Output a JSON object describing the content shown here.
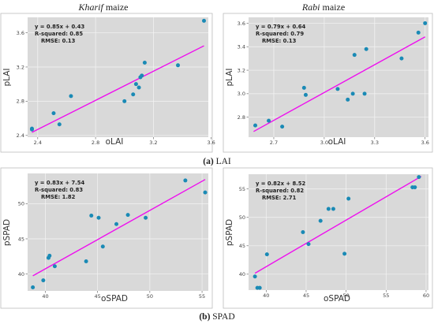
{
  "colors": {
    "panel_bg": "#d9d9d9",
    "frame": "#bcbcbc",
    "grid": "#f4f4f4",
    "point": "#1a8ab5",
    "line": "#ee0fee"
  },
  "captions": {
    "a_tag": "(a)",
    "a_text": " LAI",
    "b_tag": "(b)",
    "b_text": " SPAD"
  },
  "chart_data": [
    {
      "type": "scatter",
      "title_italic": "Kharif",
      "title_rest": " maize",
      "xlabel": "oLAI",
      "ylabel": "pLAI",
      "xlim": [
        2.33,
        3.58
      ],
      "ylim": [
        2.38,
        3.78
      ],
      "xticks": [
        2.4,
        2.8,
        3.2,
        3.6
      ],
      "yticks": [
        2.4,
        2.8,
        3.2,
        3.6
      ],
      "tick_decimals": 1,
      "stats": [
        "y = 0.85x + 0.43",
        "R-squared: 0.85",
        "RMSE: 0.13"
      ],
      "fit": {
        "slope": 0.85,
        "intercept": 0.43,
        "x": [
          2.36,
          3.55
        ]
      },
      "points": [
        [
          2.36,
          2.48
        ],
        [
          2.36,
          2.47
        ],
        [
          2.51,
          2.66
        ],
        [
          2.55,
          2.53
        ],
        [
          2.63,
          2.86
        ],
        [
          3.0,
          2.8
        ],
        [
          3.06,
          2.88
        ],
        [
          3.08,
          3.0
        ],
        [
          3.1,
          2.96
        ],
        [
          3.11,
          3.08
        ],
        [
          3.12,
          3.1
        ],
        [
          3.14,
          3.25
        ],
        [
          3.37,
          3.22
        ],
        [
          3.55,
          3.74
        ]
      ]
    },
    {
      "type": "scatter",
      "title_italic": "Rabi",
      "title_rest": " maize",
      "xlabel": "oLAI",
      "ylabel": "pLAI",
      "xlim": [
        2.55,
        3.62
      ],
      "ylim": [
        2.63,
        3.65
      ],
      "xticks": [
        2.7,
        3.0,
        3.3,
        3.6
      ],
      "yticks": [
        2.8,
        3.0,
        3.2,
        3.4,
        3.6
      ],
      "tick_decimals": 1,
      "stats": [
        "y = 0.79x + 0.64",
        "R-squared: 0.79",
        "RMSE: 0.13"
      ],
      "fit": {
        "slope": 0.79,
        "intercept": 0.64,
        "x": [
          2.58,
          3.6
        ]
      },
      "points": [
        [
          2.59,
          2.73
        ],
        [
          2.67,
          2.77
        ],
        [
          2.75,
          2.72
        ],
        [
          2.88,
          3.05
        ],
        [
          2.89,
          2.99
        ],
        [
          3.08,
          3.04
        ],
        [
          3.14,
          2.95
        ],
        [
          3.17,
          3.0
        ],
        [
          3.18,
          3.33
        ],
        [
          3.24,
          3.0
        ],
        [
          3.25,
          3.38
        ],
        [
          3.46,
          3.3
        ],
        [
          3.56,
          3.52
        ],
        [
          3.6,
          3.6
        ]
      ]
    },
    {
      "type": "scatter",
      "title_italic": "",
      "title_rest": "",
      "xlabel": "oSPAD",
      "ylabel": "pSPAD",
      "xlim": [
        38.3,
        55.6
      ],
      "ylim": [
        37.6,
        54.3
      ],
      "xticks": [
        40,
        45,
        50,
        55
      ],
      "yticks": [
        40,
        45,
        50
      ],
      "tick_decimals": 0,
      "stats": [
        "y = 0.83x + 7.54",
        "R-squared: 0.83",
        "RMSE: 1.82"
      ],
      "fit": {
        "slope": 0.83,
        "intercept": 7.54,
        "x": [
          38.8,
          55.3
        ]
      },
      "points": [
        [
          38.8,
          38.1
        ],
        [
          39.8,
          39.1
        ],
        [
          40.3,
          42.3
        ],
        [
          40.4,
          42.6
        ],
        [
          40.9,
          41.1
        ],
        [
          43.9,
          41.8
        ],
        [
          44.4,
          48.3
        ],
        [
          45.1,
          48.0
        ],
        [
          45.5,
          43.9
        ],
        [
          46.8,
          47.1
        ],
        [
          47.9,
          48.4
        ],
        [
          49.6,
          48.0
        ],
        [
          53.4,
          53.3
        ],
        [
          55.3,
          51.6
        ]
      ]
    },
    {
      "type": "scatter",
      "title_italic": "",
      "title_rest": "",
      "xlabel": "oSPAD",
      "ylabel": "pSPAD",
      "xlim": [
        37.8,
        60.3
      ],
      "ylim": [
        37.2,
        57.6
      ],
      "xticks": [
        40,
        45,
        50,
        55,
        60
      ],
      "yticks": [
        40,
        45,
        50,
        55
      ],
      "tick_decimals": 0,
      "stats": [
        "y = 0.82x + 8.52",
        "R-squared: 0.82",
        "RMSE: 2.71"
      ],
      "fit": {
        "slope": 0.82,
        "intercept": 8.52,
        "x": [
          38.6,
          59.4
        ]
      },
      "points": [
        [
          38.6,
          39.6
        ],
        [
          38.9,
          37.6
        ],
        [
          39.2,
          37.6
        ],
        [
          40.1,
          43.5
        ],
        [
          44.6,
          47.4
        ],
        [
          45.3,
          45.3
        ],
        [
          46.8,
          49.4
        ],
        [
          47.8,
          51.5
        ],
        [
          48.4,
          51.5
        ],
        [
          49.8,
          43.6
        ],
        [
          50.3,
          53.3
        ],
        [
          58.3,
          55.3
        ],
        [
          58.6,
          55.3
        ],
        [
          59.1,
          57.1
        ]
      ]
    }
  ]
}
